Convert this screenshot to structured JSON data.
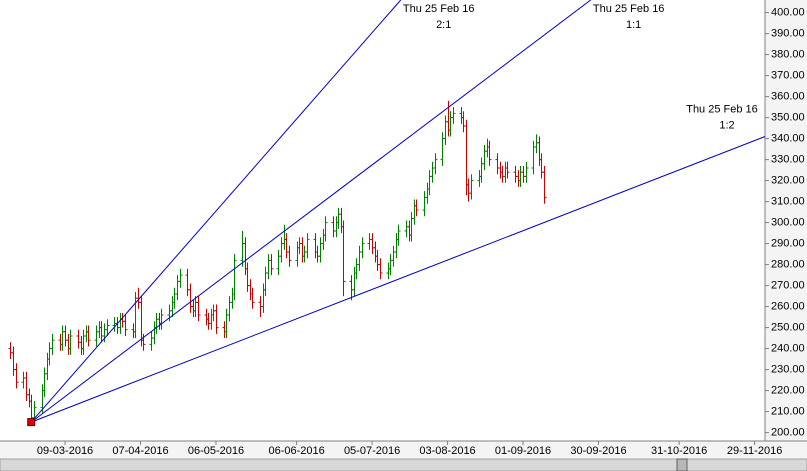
{
  "chart_data": {
    "type": "ohlc",
    "x": [
      "17-02-2016",
      "18-02-2016",
      "19-02-2016",
      "22-02-2016",
      "23-02-2016",
      "24-02-2016",
      "25-02-2016",
      "26-02-2016",
      "29-02-2016",
      "01-03-2016",
      "02-03-2016",
      "03-03-2016",
      "04-03-2016",
      "07-03-2016",
      "08-03-2016",
      "09-03-2016",
      "10-03-2016",
      "11-03-2016",
      "14-03-2016",
      "15-03-2016",
      "16-03-2016",
      "17-03-2016",
      "18-03-2016",
      "21-03-2016",
      "22-03-2016",
      "23-03-2016",
      "24-03-2016",
      "25-03-2016",
      "28-03-2016",
      "29-03-2016",
      "30-03-2016",
      "31-03-2016",
      "01-04-2016",
      "04-04-2016",
      "05-04-2016",
      "06-04-2016",
      "07-04-2016",
      "08-04-2016",
      "11-04-2016",
      "12-04-2016",
      "13-04-2016",
      "14-04-2016",
      "15-04-2016",
      "18-04-2016",
      "19-04-2016",
      "20-04-2016",
      "21-04-2016",
      "22-04-2016",
      "25-04-2016",
      "26-04-2016",
      "27-04-2016",
      "28-04-2016",
      "29-04-2016",
      "02-05-2016",
      "03-05-2016",
      "04-05-2016",
      "05-05-2016",
      "06-05-2016",
      "09-05-2016",
      "10-05-2016",
      "11-05-2016",
      "12-05-2016",
      "13-05-2016",
      "16-05-2016",
      "17-05-2016",
      "18-05-2016",
      "19-05-2016",
      "20-05-2016",
      "23-05-2016",
      "24-05-2016",
      "25-05-2016",
      "26-05-2016",
      "27-05-2016",
      "30-05-2016",
      "31-05-2016",
      "01-06-2016",
      "02-06-2016",
      "03-06-2016",
      "06-06-2016",
      "07-06-2016",
      "08-06-2016",
      "09-06-2016",
      "10-06-2016",
      "13-06-2016",
      "14-06-2016",
      "15-06-2016",
      "16-06-2016",
      "17-06-2016",
      "20-06-2016",
      "21-06-2016",
      "22-06-2016",
      "23-06-2016",
      "24-06-2016",
      "27-06-2016",
      "28-06-2016",
      "29-06-2016",
      "30-06-2016",
      "01-07-2016",
      "04-07-2016",
      "05-07-2016",
      "06-07-2016",
      "07-07-2016",
      "08-07-2016",
      "11-07-2016",
      "12-07-2016",
      "13-07-2016",
      "14-07-2016",
      "15-07-2016",
      "18-07-2016",
      "19-07-2016",
      "20-07-2016",
      "21-07-2016",
      "22-07-2016",
      "25-07-2016",
      "26-07-2016",
      "27-07-2016",
      "28-07-2016",
      "29-07-2016",
      "01-08-2016",
      "02-08-2016",
      "03-08-2016",
      "04-08-2016",
      "05-08-2016",
      "08-08-2016",
      "09-08-2016",
      "10-08-2016",
      "11-08-2016",
      "12-08-2016",
      "15-08-2016",
      "16-08-2016",
      "17-08-2016",
      "18-08-2016",
      "19-08-2016",
      "22-08-2016",
      "23-08-2016",
      "24-08-2016",
      "25-08-2016",
      "26-08-2016",
      "29-08-2016",
      "30-08-2016",
      "31-08-2016",
      "01-09-2016",
      "02-09-2016",
      "05-09-2016",
      "06-09-2016",
      "07-09-2016",
      "08-09-2016",
      "09-09-2016"
    ],
    "open": [
      240,
      238,
      230,
      224,
      226,
      218,
      215,
      207,
      212,
      220,
      228,
      235,
      240,
      244,
      242,
      248,
      244,
      240,
      246,
      243,
      240,
      246,
      248,
      244,
      248,
      250,
      246,
      249,
      251,
      252,
      250,
      254,
      253,
      249,
      248,
      264,
      262,
      244,
      242,
      245,
      250,
      254,
      252,
      256,
      258,
      262,
      266,
      272,
      275,
      268,
      260,
      258,
      262,
      256,
      254,
      252,
      256,
      258,
      250,
      248,
      256,
      262,
      266,
      282,
      290,
      278,
      270,
      266,
      262,
      260,
      268,
      276,
      282,
      278,
      284,
      290,
      292,
      286,
      282,
      288,
      290,
      284,
      286,
      292,
      286,
      284,
      290,
      294,
      300,
      296,
      300,
      304,
      298,
      272,
      268,
      276,
      280,
      286,
      290,
      292,
      288,
      284,
      280,
      276,
      278,
      282,
      286,
      292,
      296,
      298,
      294,
      302,
      308,
      306,
      312,
      316,
      322,
      326,
      330,
      340,
      348,
      344,
      350,
      352,
      350,
      346,
      318,
      314,
      320,
      322,
      328,
      334,
      336,
      330,
      326,
      324,
      322,
      326,
      324,
      322,
      320,
      324,
      322,
      326,
      336,
      338,
      330,
      324
    ],
    "high": [
      243,
      241,
      233,
      229,
      229,
      221,
      218,
      215,
      223,
      231,
      238,
      243,
      247,
      247,
      251,
      251,
      247,
      249,
      249,
      246,
      249,
      251,
      251,
      251,
      253,
      253,
      252,
      254,
      255,
      255,
      257,
      257,
      256,
      252,
      267,
      269,
      265,
      247,
      248,
      253,
      257,
      257,
      259,
      261,
      265,
      269,
      275,
      278,
      278,
      271,
      263,
      265,
      265,
      259,
      257,
      259,
      261,
      261,
      253,
      259,
      265,
      269,
      285,
      296,
      293,
      281,
      273,
      269,
      265,
      271,
      279,
      285,
      285,
      287,
      293,
      299,
      295,
      289,
      291,
      293,
      293,
      289,
      295,
      295,
      289,
      293,
      297,
      303,
      303,
      303,
      307,
      307,
      301,
      275,
      279,
      283,
      289,
      293,
      295,
      295,
      291,
      287,
      283,
      281,
      285,
      289,
      295,
      299,
      301,
      301,
      305,
      311,
      311,
      315,
      319,
      325,
      329,
      333,
      343,
      351,
      358,
      353,
      355,
      355,
      353,
      349,
      321,
      323,
      325,
      331,
      337,
      340,
      339,
      333,
      329,
      327,
      329,
      329,
      327,
      325,
      327,
      327,
      329,
      339,
      342,
      341,
      333,
      327
    ],
    "low": [
      235,
      227,
      221,
      221,
      215,
      212,
      205,
      206,
      209,
      217,
      225,
      232,
      237,
      239,
      239,
      241,
      237,
      237,
      240,
      237,
      237,
      243,
      241,
      241,
      245,
      243,
      243,
      246,
      248,
      247,
      247,
      250,
      246,
      245,
      245,
      259,
      241,
      239,
      239,
      242,
      247,
      249,
      249,
      253,
      255,
      259,
      263,
      269,
      265,
      257,
      255,
      255,
      253,
      251,
      249,
      249,
      253,
      247,
      245,
      245,
      253,
      259,
      263,
      279,
      275,
      267,
      263,
      259,
      255,
      257,
      265,
      273,
      275,
      275,
      281,
      287,
      283,
      279,
      279,
      285,
      281,
      281,
      283,
      283,
      281,
      281,
      287,
      291,
      293,
      293,
      297,
      295,
      265,
      263,
      265,
      273,
      277,
      283,
      287,
      285,
      281,
      277,
      273,
      273,
      275,
      279,
      283,
      289,
      293,
      291,
      291,
      299,
      303,
      303,
      309,
      313,
      319,
      323,
      327,
      337,
      341,
      341,
      347,
      347,
      343,
      313,
      310,
      311,
      317,
      319,
      325,
      331,
      327,
      323,
      321,
      319,
      319,
      321,
      319,
      317,
      317,
      319,
      319,
      323,
      333,
      327,
      321,
      309
    ],
    "close": [
      238,
      230,
      224,
      226,
      218,
      215,
      207,
      212,
      220,
      228,
      235,
      240,
      244,
      242,
      248,
      244,
      240,
      246,
      243,
      240,
      246,
      248,
      244,
      248,
      250,
      246,
      249,
      251,
      252,
      250,
      254,
      253,
      249,
      248,
      264,
      262,
      244,
      242,
      245,
      250,
      254,
      252,
      256,
      258,
      262,
      266,
      272,
      275,
      268,
      260,
      258,
      262,
      256,
      254,
      252,
      256,
      258,
      250,
      248,
      256,
      262,
      266,
      282,
      290,
      278,
      270,
      266,
      262,
      260,
      268,
      276,
      282,
      278,
      284,
      290,
      292,
      286,
      282,
      288,
      290,
      284,
      286,
      292,
      286,
      284,
      290,
      294,
      300,
      296,
      300,
      304,
      298,
      272,
      268,
      276,
      280,
      286,
      290,
      292,
      288,
      284,
      280,
      276,
      278,
      282,
      286,
      292,
      296,
      298,
      294,
      302,
      308,
      306,
      312,
      316,
      322,
      326,
      330,
      340,
      348,
      344,
      350,
      352,
      350,
      346,
      318,
      314,
      320,
      322,
      328,
      334,
      336,
      330,
      326,
      324,
      322,
      326,
      324,
      322,
      320,
      324,
      322,
      326,
      336,
      338,
      330,
      324,
      312
    ],
    "up_color": "#008000",
    "down_color": "#c80000",
    "xlim": [
      "13-02-2016",
      "03-12-2016"
    ],
    "xticks": [
      "09-03-2016",
      "07-04-2016",
      "06-05-2016",
      "06-06-2016",
      "05-07-2016",
      "03-08-2016",
      "01-09-2016",
      "30-09-2016",
      "31-10-2016",
      "29-11-2016"
    ],
    "ylim": [
      196,
      406
    ],
    "yticks": [
      {
        "value": 200,
        "label": "200.00"
      },
      {
        "value": 210,
        "label": "210.00"
      },
      {
        "value": 220,
        "label": "220.00"
      },
      {
        "value": 230,
        "label": "230.00"
      },
      {
        "value": 240,
        "label": "240.00"
      },
      {
        "value": 250,
        "label": "250.00"
      },
      {
        "value": 260,
        "label": "260.00"
      },
      {
        "value": 270,
        "label": "270.00"
      },
      {
        "value": 280,
        "label": "280.00"
      },
      {
        "value": 290,
        "label": "290.00"
      },
      {
        "value": 300,
        "label": "300.00"
      },
      {
        "value": 310,
        "label": "310.00"
      },
      {
        "value": 320,
        "label": "320.00"
      },
      {
        "value": 330,
        "label": "330.00"
      },
      {
        "value": 340,
        "label": "340.00"
      },
      {
        "value": 350,
        "label": "350.00"
      },
      {
        "value": 360,
        "label": "360.00"
      },
      {
        "value": 370,
        "label": "370.00"
      },
      {
        "value": 380,
        "label": "380.00"
      },
      {
        "value": 390,
        "label": "390.00"
      },
      {
        "value": 400,
        "label": "400.00"
      }
    ],
    "fan": {
      "color": "#0000c8",
      "origin": {
        "x": "25-02-2016",
        "value": 205,
        "color": "#e00000"
      },
      "lines": [
        {
          "date_label": "Thu 25 Feb 16",
          "ratio": "2:1",
          "end_x": "16-07-2016",
          "end_value": 406
        },
        {
          "date_label": "Thu 25 Feb 16",
          "ratio": "1:1",
          "end_x": "27-09-2016",
          "end_value": 406
        },
        {
          "date_label": "Thu 25 Feb 16",
          "ratio": "1:2",
          "end_x": "03-12-2016",
          "end_value": 341
        }
      ]
    }
  }
}
